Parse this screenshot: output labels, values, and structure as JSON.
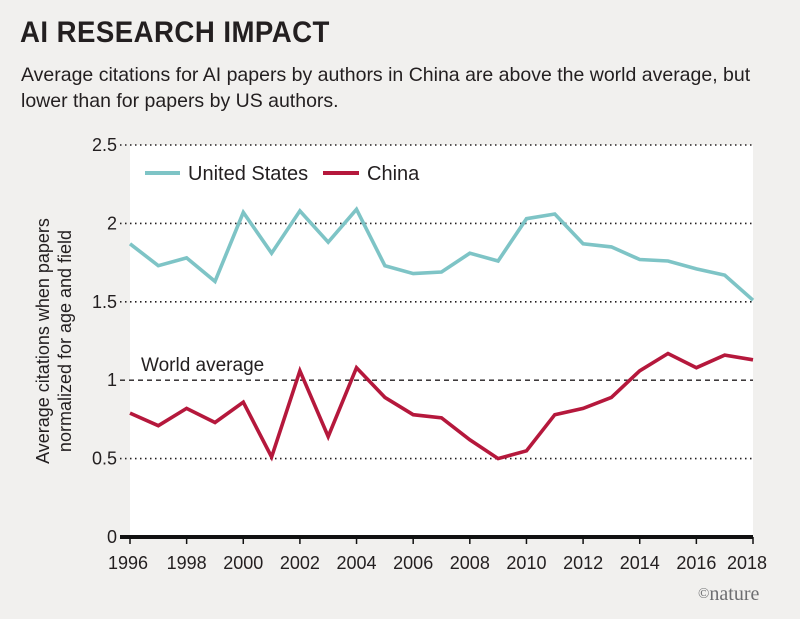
{
  "title": "AI RESEARCH IMPACT",
  "subtitle": "Average citations for AI papers by authors in China are above the world average, but lower than for papers by US authors.",
  "watermark": {
    "symbol": "©",
    "text": "nature"
  },
  "colors": {
    "us": "#7ec4c6",
    "china": "#b5183c",
    "background": "#f1f0ee",
    "plot": "#ffffff",
    "text": "#231f20"
  },
  "chart_data": {
    "type": "line",
    "title": "AI RESEARCH IMPACT",
    "subtitle": "Average citations for AI papers by authors in China are above the world average, but lower than for papers by US authors.",
    "xlabel": "",
    "ylabel": "Average citations when papers normalized for age and field",
    "ylabel_lines": [
      "Average citations when papers",
      "normalized for age and field"
    ],
    "xlim": [
      1996,
      2018
    ],
    "ylim": [
      0,
      2.5
    ],
    "x_ticks": [
      1996,
      1998,
      2000,
      2002,
      2004,
      2006,
      2008,
      2010,
      2012,
      2014,
      2016,
      2018
    ],
    "y_ticks": [
      0,
      0.5,
      1,
      1.5,
      2,
      2.5
    ],
    "y_tick_labels": [
      "0",
      "0.5",
      "1",
      "1.5",
      "2",
      "2.5"
    ],
    "grid": "horizontal dotted",
    "legend_position": "top-left",
    "x": [
      1996,
      1997,
      1998,
      1999,
      2000,
      2001,
      2002,
      2003,
      2004,
      2005,
      2006,
      2007,
      2008,
      2009,
      2010,
      2011,
      2012,
      2013,
      2014,
      2015,
      2016,
      2017,
      2018
    ],
    "series": [
      {
        "name": "United States",
        "color": "#7ec4c6",
        "values": [
          1.87,
          1.73,
          1.78,
          1.63,
          2.07,
          1.81,
          2.08,
          1.88,
          2.09,
          1.73,
          1.68,
          1.69,
          1.81,
          1.76,
          2.03,
          2.06,
          1.87,
          1.85,
          1.77,
          1.76,
          1.71,
          1.67,
          1.51
        ]
      },
      {
        "name": "China",
        "color": "#b5183c",
        "values": [
          0.79,
          0.71,
          0.82,
          0.73,
          0.86,
          0.51,
          1.06,
          0.64,
          1.08,
          0.89,
          0.78,
          0.76,
          0.62,
          0.5,
          0.55,
          0.78,
          0.82,
          0.89,
          1.06,
          1.17,
          1.08,
          1.16,
          1.13
        ]
      }
    ],
    "annotations": [
      {
        "text": "World average",
        "y": 1
      }
    ]
  }
}
